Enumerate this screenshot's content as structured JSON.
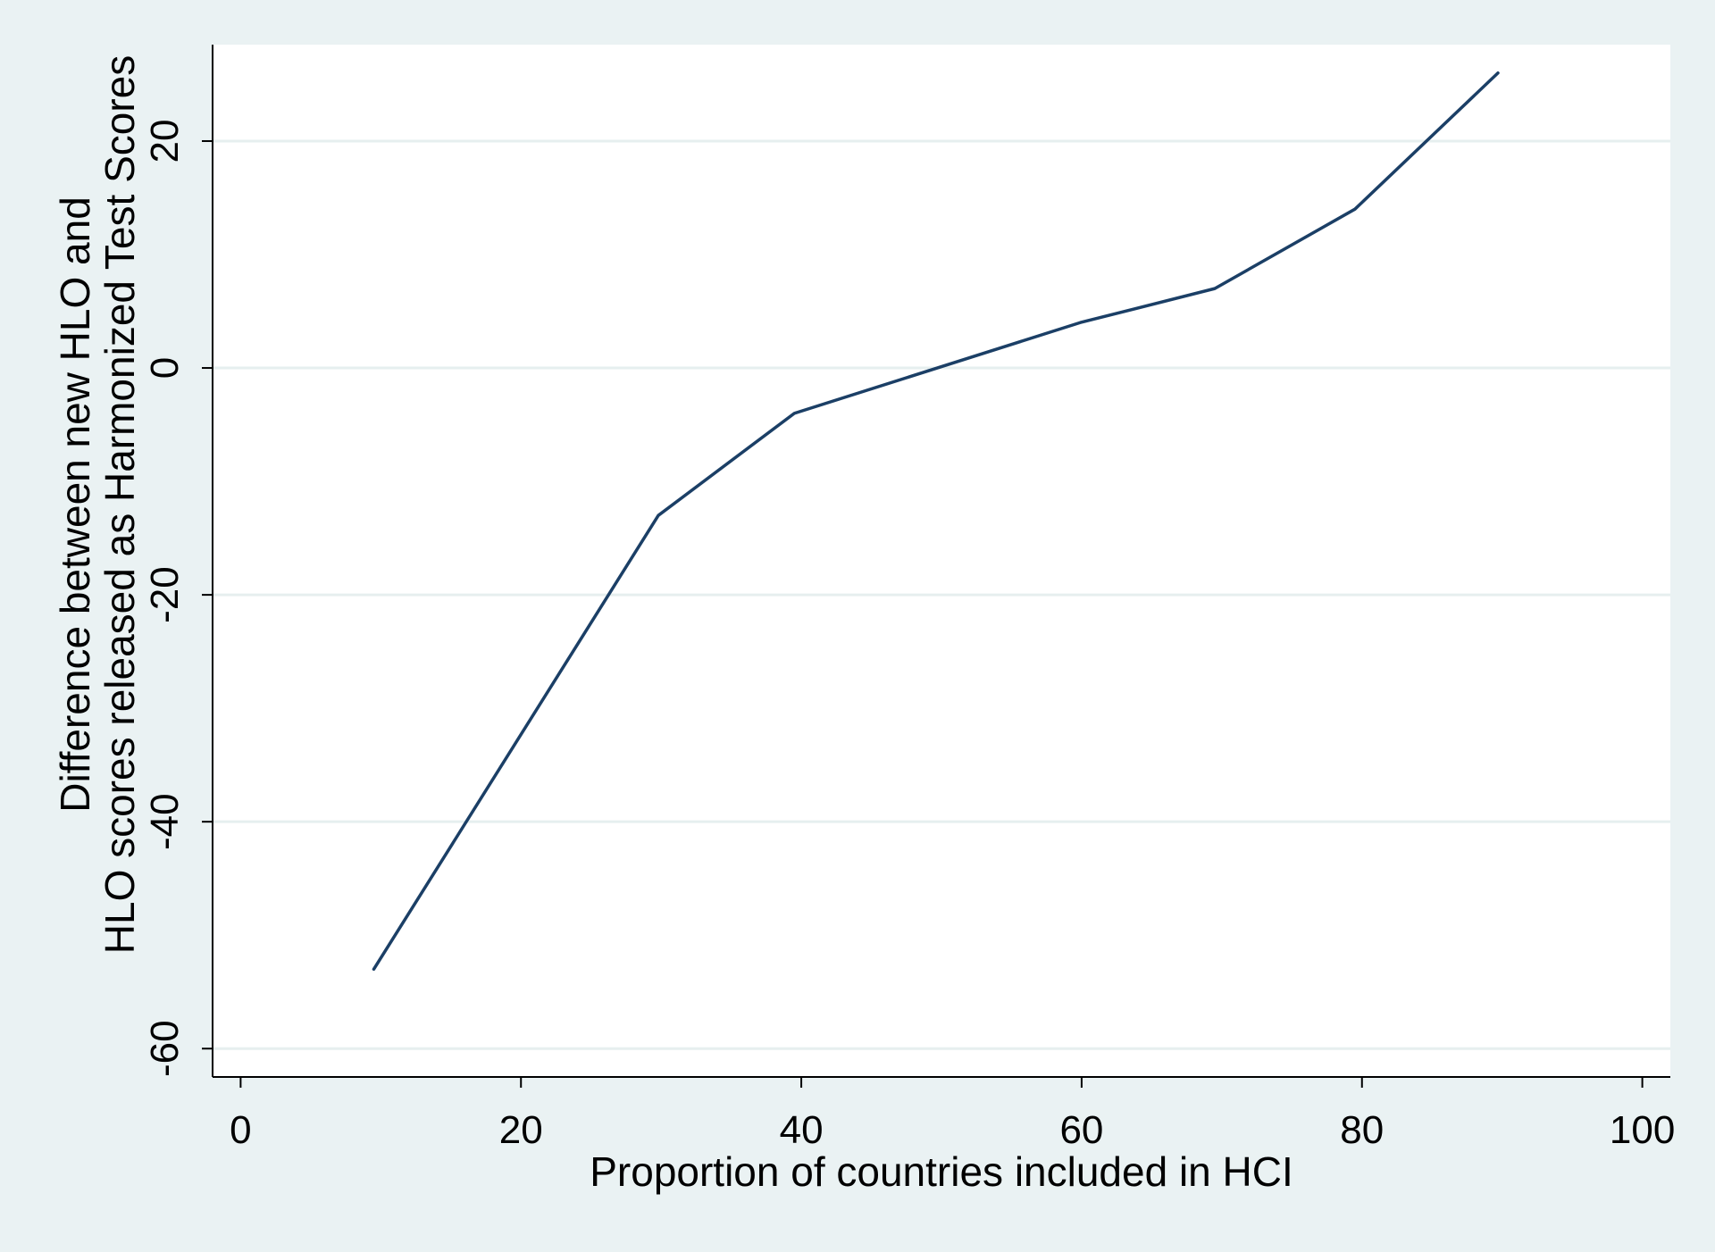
{
  "chart_data": {
    "type": "line",
    "title": "",
    "xlabel": "Proportion of countries included in HCI",
    "ylabel_lines": [
      "Difference between new HLO and",
      "HLO scores released as Harmonized Test Scores"
    ],
    "xlim": [
      -2,
      102
    ],
    "ylim": [
      -62.5,
      28.5
    ],
    "x_ticks": [
      0,
      20,
      40,
      60,
      80,
      100
    ],
    "y_ticks": [
      -60,
      -40,
      -20,
      0,
      20
    ],
    "grid": "horizontal",
    "legend": "none",
    "series": [
      {
        "x": [
          9.5,
          29.8,
          39.5,
          59.9,
          69.5,
          79.5,
          89.7
        ],
        "values": [
          -53,
          -13,
          -4,
          4,
          7,
          14,
          26
        ]
      }
    ],
    "colors": {
      "background": "#eaf2f3",
      "plot_area": "#ffffff",
      "gridline": "#e6efef",
      "line": "#1b3f66",
      "axis": "#000000"
    }
  }
}
